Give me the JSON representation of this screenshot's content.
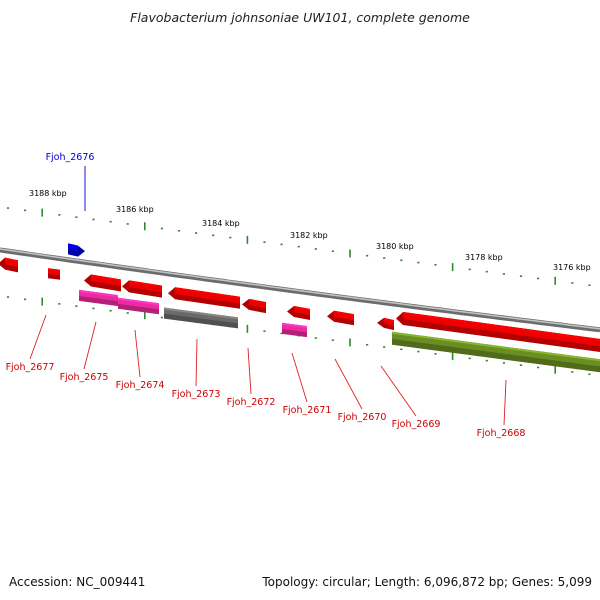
{
  "title": "Flavobacterium johnsoniae UW101, complete genome",
  "footer": {
    "accession": "Accession: NC_009441",
    "topology": "Topology: circular; Length: 6,096,872 bp; Genes: 5,099"
  },
  "colors": {
    "forward_gene": "#ee0000",
    "reverse_red": "#ee0000",
    "reverse_pink": "#ee2b9e",
    "reverse_gray": "#6a6a6a",
    "reverse_olive": "#6b8e23",
    "highlight_gene": "#0000dd",
    "backbone": "#8c8c8c",
    "tick": "#2e8b2e",
    "label_red": "#cc0000",
    "label_blue": "#0000cc"
  },
  "position_labels": [
    "3188 kbp",
    "3186 kbp",
    "3184 kbp",
    "3182 kbp",
    "3180 kbp",
    "3178 kbp",
    "3176 kbp"
  ],
  "genes": [
    {
      "name": "Fjoh_2676",
      "strand": "+",
      "color": "highlight",
      "labeled": true
    },
    {
      "name": "Fjoh_2677",
      "strand": "-",
      "color": "red",
      "labeled": true
    },
    {
      "name": "Fjoh_2675",
      "strand": "-",
      "color": "pink",
      "labeled": true
    },
    {
      "name": "Fjoh_2674",
      "strand": "-",
      "color": "pink",
      "labeled": true
    },
    {
      "name": "Fjoh_2673",
      "strand": "-",
      "color": "gray",
      "labeled": true
    },
    {
      "name": "Fjoh_2672",
      "strand": "-",
      "color": "red",
      "labeled": true
    },
    {
      "name": "Fjoh_2671",
      "strand": "-",
      "color": "pink",
      "labeled": true
    },
    {
      "name": "Fjoh_2670",
      "strand": "-",
      "color": "red",
      "labeled": true
    },
    {
      "name": "Fjoh_2669",
      "strand": "-",
      "color": "red",
      "labeled": true
    },
    {
      "name": "Fjoh_2668",
      "strand": "-",
      "color": "olive",
      "labeled": true
    }
  ]
}
